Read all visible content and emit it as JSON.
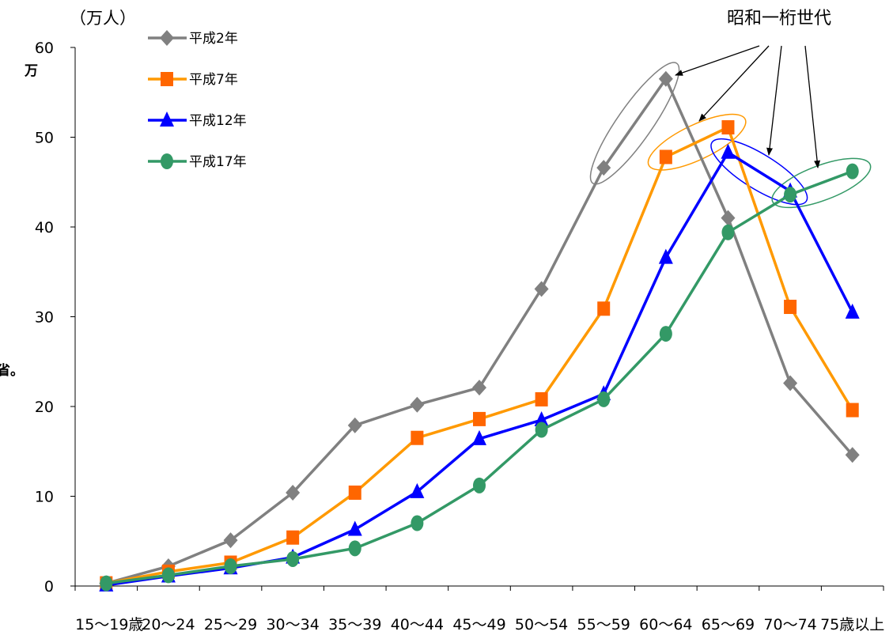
{
  "chart_data": {
    "type": "line",
    "unit_label": "（万人）",
    "stray_y_char": "万",
    "stray_left_text": "省。",
    "annotation": "昭和一桁世代",
    "categories": [
      "15～19歳",
      "20～24",
      "25～29",
      "30～34",
      "35～39",
      "40～44",
      "45～49",
      "50～54",
      "55～59",
      "60～64",
      "65～69",
      "70～74",
      "75歳以上"
    ],
    "ylim": [
      0,
      60
    ],
    "yticks": [
      "0",
      "10",
      "20",
      "30",
      "40",
      "50",
      "60"
    ],
    "grid": false,
    "legend_position": "top-left",
    "series": [
      {
        "name": "平成2年",
        "color": "#808080",
        "marker": "diamond",
        "values": [
          0.3,
          2.2,
          5.1,
          10.4,
          17.9,
          20.2,
          22.1,
          33.1,
          46.6,
          56.5,
          41.0,
          22.6,
          14.6
        ]
      },
      {
        "name": "平成7年",
        "color": "#FF9900",
        "marker_color": "#FF6600",
        "marker": "square",
        "values": [
          0.3,
          1.6,
          2.6,
          5.4,
          10.4,
          16.5,
          18.6,
          20.8,
          30.9,
          47.8,
          51.1,
          31.1,
          19.6
        ]
      },
      {
        "name": "平成12年",
        "color": "#0000FF",
        "marker": "triangle",
        "values": [
          0.1,
          1.1,
          2.0,
          3.2,
          6.3,
          10.5,
          16.4,
          18.5,
          21.4,
          36.6,
          48.3,
          44.0,
          30.5
        ]
      },
      {
        "name": "平成17年",
        "color": "#339966",
        "marker": "circle",
        "values": [
          0.3,
          1.2,
          2.2,
          3.0,
          4.2,
          7.0,
          11.2,
          17.4,
          20.8,
          28.1,
          39.4,
          43.6,
          46.2
        ]
      }
    ],
    "highlight_ellipses": [
      {
        "series": "平成2年",
        "from": "55～59",
        "to": "60～64"
      },
      {
        "series": "平成7年",
        "from": "60～64",
        "to": "65～69"
      },
      {
        "series": "平成12年",
        "from": "65～69",
        "to": "70～74"
      },
      {
        "series": "平成17年",
        "from": "70～74",
        "to": "75歳以上"
      }
    ]
  }
}
